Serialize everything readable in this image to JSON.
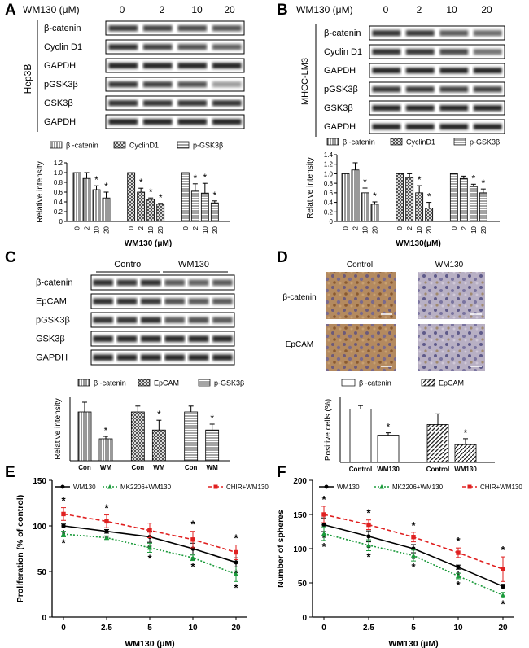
{
  "panel_letters": [
    "A",
    "B",
    "C",
    "D",
    "E",
    "F"
  ],
  "panel_a": {
    "dose_label": "WM130 (μM)",
    "doses": [
      "0",
      "2",
      "10",
      "20"
    ],
    "cell_line": "Hep3B",
    "bands": [
      "β-catenin",
      "Cyclin D1",
      "GAPDH",
      "pGSK3β",
      "GSK3β",
      "GAPDH"
    ]
  },
  "panel_b": {
    "dose_label": "WM130 (μM)",
    "doses": [
      "0",
      "2",
      "10",
      "20"
    ],
    "cell_line": "MHCC-LM3",
    "bands": [
      "β-catenin",
      "Cyclin D1",
      "GAPDH",
      "pGSK3β",
      "GSK3β",
      "GAPDH"
    ]
  },
  "panel_c": {
    "groups": [
      "Control",
      "WM130"
    ],
    "bands": [
      "β-catenin",
      "EpCAM",
      "pGSK3β",
      "GSK3β",
      "GAPDH"
    ]
  },
  "panel_d": {
    "columns": [
      "Control",
      "WM130"
    ],
    "rows": [
      "β-catenin",
      "EpCAM"
    ]
  },
  "chart_data": [
    {
      "id": "A-bar",
      "type": "bar",
      "legend": [
        "β -catenin",
        "CyclinD1",
        "p-GSK3β"
      ],
      "categories": [
        "0",
        "2",
        "10",
        "20"
      ],
      "series": [
        {
          "name": "β -catenin",
          "values": [
            1.0,
            0.88,
            0.65,
            0.48
          ],
          "errors": [
            0,
            0.12,
            0.08,
            0.12
          ],
          "sig": [
            false,
            false,
            true,
            true
          ]
        },
        {
          "name": "CyclinD1",
          "values": [
            1.0,
            0.6,
            0.45,
            0.35
          ],
          "errors": [
            0,
            0.08,
            0.03,
            0.02
          ],
          "sig": [
            false,
            true,
            true,
            true
          ]
        },
        {
          "name": "p-GSK3β",
          "values": [
            1.0,
            0.62,
            0.58,
            0.38
          ],
          "errors": [
            0,
            0.15,
            0.2,
            0.04
          ],
          "sig": [
            false,
            true,
            true,
            true
          ]
        }
      ],
      "ylabel": "Relative intensity",
      "xlabel": "WM130 (μM)",
      "ylim": [
        0,
        1.2
      ],
      "yticks": [
        "0",
        "0.2",
        "0.4",
        "0.6",
        "0.8",
        "1.0",
        "1.2"
      ]
    },
    {
      "id": "B-bar",
      "type": "bar",
      "legend": [
        "β -catenin",
        "CyclinD1",
        "p-GSK3β"
      ],
      "categories": [
        "0",
        "2",
        "10",
        "20"
      ],
      "series": [
        {
          "name": "β -catenin",
          "values": [
            1.0,
            1.08,
            0.6,
            0.36
          ],
          "errors": [
            0,
            0.15,
            0.1,
            0.05
          ],
          "sig": [
            false,
            false,
            true,
            true
          ]
        },
        {
          "name": "CyclinD1",
          "values": [
            1.0,
            0.92,
            0.6,
            0.28
          ],
          "errors": [
            0,
            0.08,
            0.15,
            0.12
          ],
          "sig": [
            false,
            false,
            true,
            true
          ]
        },
        {
          "name": "p-GSK3β",
          "values": [
            1.0,
            0.9,
            0.73,
            0.6
          ],
          "errors": [
            0,
            0.05,
            0.05,
            0.08
          ],
          "sig": [
            false,
            false,
            true,
            true
          ]
        }
      ],
      "ylabel": "Relative intensity",
      "xlabel": "WM130(μM)",
      "ylim": [
        0,
        1.4
      ],
      "yticks": [
        "0",
        "0.2",
        "0.4",
        "0.6",
        "0.8",
        "1.0",
        "1.2",
        "1.4"
      ]
    },
    {
      "id": "C-bar",
      "type": "bar",
      "legend": [
        "β -catenin",
        "EpCAM",
        "p-GSK3β"
      ],
      "categories": [
        "Con",
        "WM"
      ],
      "series": [
        {
          "name": "β -catenin",
          "values": [
            1.0,
            0.45
          ],
          "errors": [
            0.2,
            0.05
          ],
          "sig": [
            false,
            true
          ]
        },
        {
          "name": "EpCAM",
          "values": [
            1.0,
            0.63
          ],
          "errors": [
            0.12,
            0.2
          ],
          "sig": [
            false,
            true
          ]
        },
        {
          "name": "p-GSK3β",
          "values": [
            1.0,
            0.63
          ],
          "errors": [
            0.12,
            0.12
          ],
          "sig": [
            false,
            true
          ]
        }
      ],
      "ylabel": "Relative intensity",
      "xlabel": "",
      "ylim": [
        0,
        1.3
      ]
    },
    {
      "id": "D-bar",
      "type": "bar",
      "legend": [
        "β -catenin",
        "EpCAM"
      ],
      "categories": [
        "Control",
        "WM130"
      ],
      "series": [
        {
          "name": "β -catenin",
          "values": [
            45,
            23
          ],
          "errors": [
            3,
            2
          ],
          "sig": [
            false,
            true
          ]
        },
        {
          "name": "EpCAM",
          "values": [
            32,
            15
          ],
          "errors": [
            9,
            5
          ],
          "sig": [
            false,
            true
          ]
        }
      ],
      "ylabel": "Positive cells (%)",
      "xlabel": "",
      "ylim": [
        0,
        55
      ]
    },
    {
      "id": "E-line",
      "type": "line",
      "x": [
        "0",
        "2.5",
        "5",
        "10",
        "20"
      ],
      "series": [
        {
          "name": "WM130",
          "color": "#000000",
          "values": [
            100,
            94,
            88,
            75,
            60
          ],
          "errors": [
            2,
            2,
            6,
            6,
            5
          ],
          "sig": [
            true,
            true,
            true,
            true,
            true
          ]
        },
        {
          "name": "MK2206+WM130",
          "color": "#1a9a3a",
          "values": [
            91,
            87,
            76,
            65,
            47
          ],
          "errors": [
            3,
            2,
            5,
            3,
            8
          ],
          "sig": [
            true,
            false,
            true,
            true,
            true
          ]
        },
        {
          "name": "CHIR+WM130",
          "color": "#e02020",
          "values": [
            113,
            105,
            95,
            85,
            71
          ],
          "errors": [
            7,
            7,
            8,
            9,
            8
          ],
          "sig": [
            true,
            true,
            false,
            true,
            true
          ]
        }
      ],
      "ylabel": "Proliferation (% of control)",
      "xlabel": "WM130 (μM)",
      "ylim": [
        0,
        150
      ],
      "yticks": [
        "0",
        "50",
        "100",
        "150"
      ]
    },
    {
      "id": "F-line",
      "type": "line",
      "x": [
        "0",
        "2.5",
        "5",
        "10",
        "20"
      ],
      "series": [
        {
          "name": "WM130",
          "color": "#000000",
          "values": [
            135,
            118,
            100,
            73,
            45
          ],
          "errors": [
            10,
            8,
            6,
            3,
            3
          ],
          "sig": [
            true,
            true,
            true,
            true,
            false
          ]
        },
        {
          "name": "MK2206+WM130",
          "color": "#1a9a3a",
          "values": [
            122,
            105,
            90,
            60,
            32
          ],
          "errors": [
            10,
            8,
            8,
            4,
            4
          ],
          "sig": [
            true,
            true,
            true,
            true,
            true
          ]
        },
        {
          "name": "CHIR+WM130",
          "color": "#e02020",
          "values": [
            150,
            135,
            117,
            94,
            70
          ],
          "errors": [
            12,
            7,
            7,
            7,
            18
          ],
          "sig": [
            true,
            true,
            true,
            true,
            true
          ]
        }
      ],
      "ylabel": "Number of spheres",
      "xlabel": "WM130 (μM)",
      "ylim": [
        0,
        200
      ],
      "yticks": [
        "0",
        "50",
        "100",
        "150",
        "200"
      ]
    }
  ],
  "colors": {
    "wm130": "#000000",
    "mk2206": "#1a9a3a",
    "chir": "#e02020"
  }
}
